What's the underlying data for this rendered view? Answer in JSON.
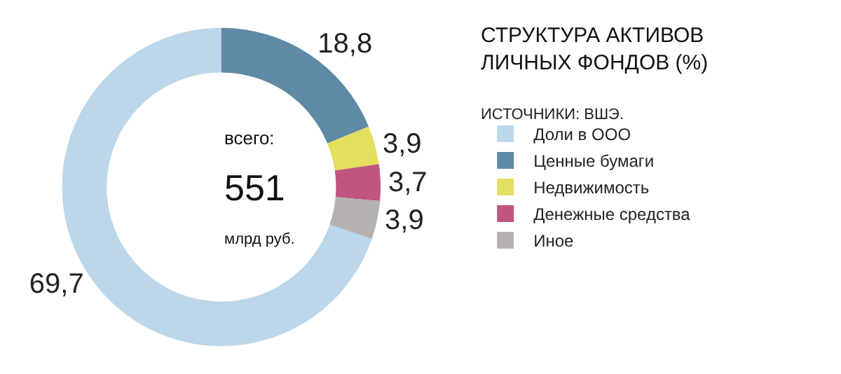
{
  "chart_data": {
    "type": "donut",
    "title": "СТРУКТУРА АКТИВОВ\nЛИЧНЫХ ФОНДОВ (%)",
    "subtitle": "ИСТОЧНИКИ: ВШЭ.",
    "categories": [
      "Доли в ООО",
      "Ценные бумаги",
      "Недвижимость",
      "Денежные средства",
      "Иное"
    ],
    "values": [
      69.7,
      18.8,
      3.9,
      3.7,
      3.9
    ],
    "value_labels": [
      "69,7",
      "18,8",
      "3,9",
      "3,7",
      "3,9"
    ],
    "colors": [
      "#bcd7ea",
      "#5f8aa5",
      "#e3df5f",
      "#c0557f",
      "#b5b1b0"
    ],
    "annotations": [
      "всего:",
      "551",
      "млрд руб."
    ],
    "legend": "right"
  }
}
